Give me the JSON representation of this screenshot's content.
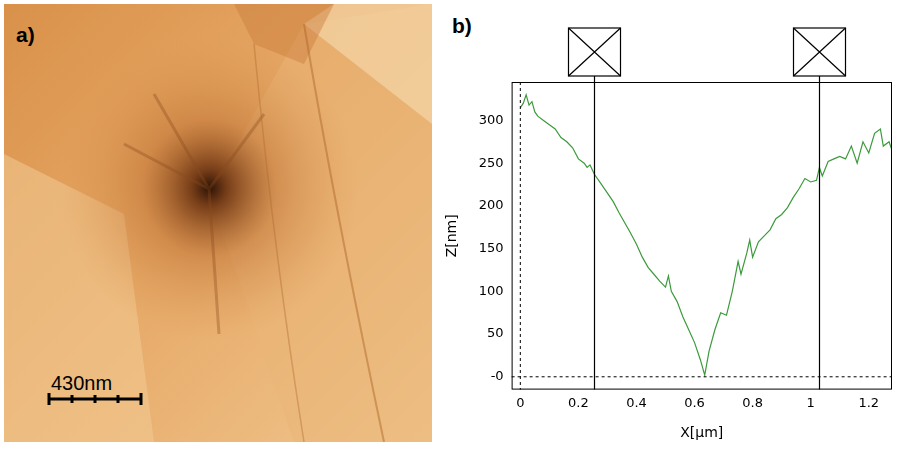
{
  "image_panel": {
    "label": "a)",
    "scale_bar": "430nm"
  },
  "chart_data": {
    "type": "line",
    "panel_label": "b)",
    "x_label": "X[µm]",
    "y_label": "Z[nm]",
    "color": "#3c9a3c",
    "grid": false,
    "xlim": [
      -0.03,
      1.28
    ],
    "ylim": [
      -15,
      345
    ],
    "xticks": [
      0,
      0.2,
      0.4,
      0.6,
      0.8,
      1,
      1.2
    ],
    "yticks": [
      {
        "value": 0,
        "label": "-0"
      },
      50,
      100,
      150,
      200,
      250,
      300
    ],
    "cursors": [
      0.255,
      1.03
    ],
    "dashed_lines": {
      "x": 0,
      "y": 0
    },
    "x": [
      0,
      0.01,
      0.02,
      0.03,
      0.04,
      0.05,
      0.06,
      0.08,
      0.1,
      0.12,
      0.14,
      0.16,
      0.18,
      0.2,
      0.22,
      0.23,
      0.24,
      0.255,
      0.28,
      0.3,
      0.32,
      0.34,
      0.36,
      0.38,
      0.4,
      0.42,
      0.44,
      0.46,
      0.48,
      0.5,
      0.51,
      0.52,
      0.54,
      0.56,
      0.58,
      0.6,
      0.62,
      0.635,
      0.65,
      0.67,
      0.69,
      0.71,
      0.73,
      0.75,
      0.76,
      0.78,
      0.79,
      0.8,
      0.82,
      0.84,
      0.86,
      0.88,
      0.9,
      0.92,
      0.94,
      0.96,
      0.98,
      1,
      1.02,
      1.03,
      1.04,
      1.06,
      1.08,
      1.1,
      1.12,
      1.14,
      1.16,
      1.18,
      1.2,
      1.22,
      1.24,
      1.25,
      1.27,
      1.28
    ],
    "values": [
      315,
      320,
      330,
      318,
      322,
      310,
      305,
      300,
      295,
      290,
      280,
      275,
      268,
      255,
      250,
      245,
      248,
      237,
      225,
      215,
      205,
      192,
      180,
      168,
      155,
      140,
      128,
      120,
      112,
      105,
      118,
      100,
      88,
      70,
      55,
      40,
      20,
      2,
      30,
      55,
      75,
      72,
      100,
      135,
      120,
      145,
      160,
      140,
      158,
      165,
      172,
      185,
      190,
      198,
      210,
      220,
      232,
      228,
      230,
      245,
      235,
      252,
      255,
      258,
      255,
      270,
      250,
      275,
      262,
      285,
      290,
      270,
      275,
      265
    ]
  }
}
